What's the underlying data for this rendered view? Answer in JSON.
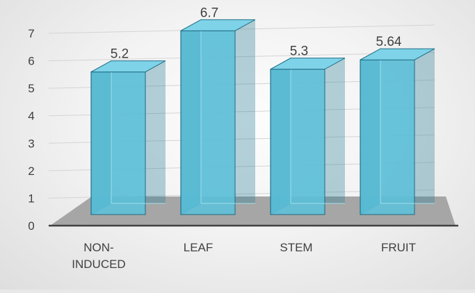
{
  "chart_data": {
    "type": "bar",
    "style": "3d-column",
    "categories": [
      "NON-INDUCED",
      "LEAF",
      "STEM",
      "FRUIT"
    ],
    "category_lines": [
      [
        "NON-",
        "INDUCED"
      ],
      [
        "LEAF"
      ],
      [
        "STEM"
      ],
      [
        "FRUIT"
      ]
    ],
    "values": [
      5.2,
      6.7,
      5.3,
      5.64
    ],
    "data_labels": [
      "5.2",
      "6.7",
      "5.3",
      "5.64"
    ],
    "yticks": [
      "0",
      "1",
      "2",
      "3",
      "4",
      "5",
      "6",
      "7"
    ],
    "ylim": [
      0,
      7
    ],
    "title": "",
    "xlabel": "",
    "ylabel": "",
    "grid": true,
    "legend": "none",
    "colors": {
      "bar_front": "#5ec2db",
      "bar_side": "#2e8098",
      "bar_top": "#7fd3e8",
      "bar_edge": "#1f6f86",
      "floor": "#a6a6a6",
      "gridline": "#d4d4d4",
      "axis": "#404040",
      "text": "#404040"
    }
  }
}
